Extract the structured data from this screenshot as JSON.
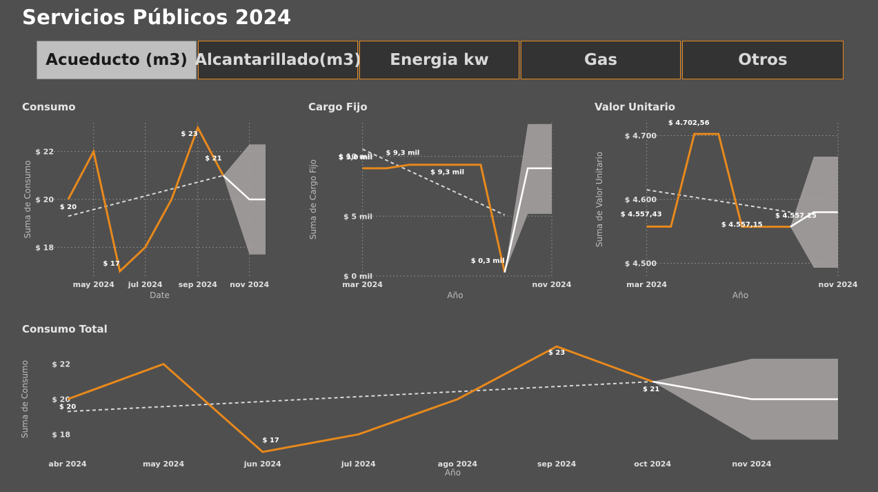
{
  "page": {
    "title": "Servicios Públicos 2024"
  },
  "tabs": [
    {
      "label": "Acueducto (m3)",
      "active": true
    },
    {
      "label": "Alcantarillado(m3)",
      "active": false
    },
    {
      "label": "Energia kw",
      "active": false
    },
    {
      "label": "Gas",
      "active": false
    },
    {
      "label": "Otros",
      "active": false
    }
  ],
  "colors": {
    "line": "#e8891c",
    "forecast": "#ffffff",
    "band": "#a9a3a3",
    "trend": "#d9d9d9",
    "grid": "#8a8a8a",
    "tab_border": "#e8891c"
  },
  "chart_data": [
    {
      "id": "consumo",
      "type": "line",
      "title": "Consumo",
      "xlabel": "Date",
      "ylabel": "Suma de Consumo",
      "x": [
        "2024-04-01",
        "2024-05-01",
        "2024-06-01",
        "2024-07-01",
        "2024-08-01",
        "2024-09-01",
        "2024-10-01"
      ],
      "values": [
        20,
        22,
        17,
        18,
        20,
        23,
        21
      ],
      "xlim": [
        "2024-03-15",
        "2024-11-20"
      ],
      "ylim": [
        16.8,
        23.2
      ],
      "yticks": [
        {
          "v": 18,
          "label": "$ 18"
        },
        {
          "v": 20,
          "label": "$ 20"
        },
        {
          "v": 22,
          "label": "$ 22"
        }
      ],
      "xticks": [
        {
          "x": "2024-05-01",
          "label": "may 2024"
        },
        {
          "x": "2024-07-01",
          "label": "jul 2024"
        },
        {
          "x": "2024-09-01",
          "label": "sep 2024"
        },
        {
          "x": "2024-11-01",
          "label": "nov 2024"
        }
      ],
      "data_labels": [
        {
          "i": 0,
          "label": "$ 20"
        },
        {
          "i": 2,
          "label": "$ 17"
        },
        {
          "i": 5,
          "label": "$ 23"
        },
        {
          "i": 6,
          "label": "$ 21"
        }
      ],
      "trend": {
        "x": [
          "2024-04-01",
          "2024-10-01"
        ],
        "y": [
          19.3,
          21.0
        ]
      },
      "forecast": {
        "x": [
          "2024-10-01",
          "2024-11-01",
          "2024-11-20"
        ],
        "y": [
          21,
          20,
          20
        ],
        "upper": [
          21,
          22.3,
          22.3
        ],
        "lower": [
          21,
          17.7,
          17.7
        ]
      },
      "grid": true
    },
    {
      "id": "cargo",
      "type": "line",
      "title": "Cargo Fijo",
      "xlabel": "Año",
      "ylabel": "Suma de Cargo Fijo",
      "x": [
        "2024-03-01",
        "2024-04-01",
        "2024-05-01",
        "2024-06-01",
        "2024-07-01",
        "2024-08-01",
        "2024-09-01"
      ],
      "values": [
        9.0,
        9.0,
        9.3,
        9.3,
        9.3,
        9.3,
        0.3
      ],
      "xlim": [
        "2024-02-25",
        "2024-11-01"
      ],
      "ylim": [
        0,
        12.8
      ],
      "yticks": [
        {
          "v": 0,
          "label": "$ 0 mil"
        },
        {
          "v": 5,
          "label": "$ 5 mil"
        },
        {
          "v": 10,
          "label": "$ 10 mil"
        }
      ],
      "xticks": [
        {
          "x": "2024-03-01",
          "label": "mar 2024"
        },
        {
          "x": "2024-11-01",
          "label": "nov 2024"
        }
      ],
      "data_labels": [
        {
          "i": 0,
          "label": "$ 9,0 mil"
        },
        {
          "i": 2,
          "label": "$ 9,3 mil"
        },
        {
          "i": 3,
          "label": "$ 9,3 mil"
        },
        {
          "i": 6,
          "label": "$ 0,3 mil"
        }
      ],
      "trend": {
        "x": [
          "2024-03-01",
          "2024-09-01"
        ],
        "y": [
          10.6,
          5.1
        ]
      },
      "forecast": {
        "x": [
          "2024-09-01",
          "2024-10-01",
          "2024-11-01"
        ],
        "y": [
          0.3,
          9.0,
          9.0
        ],
        "upper": [
          0.3,
          12.7,
          12.7
        ],
        "lower": [
          0.3,
          5.2,
          5.2
        ]
      },
      "grid": true
    },
    {
      "id": "valor",
      "type": "line",
      "title": "Valor Unitario",
      "xlabel": "Año",
      "ylabel": "Suma de Valor Unitario",
      "x": [
        "2024-03-01",
        "2024-04-01",
        "2024-05-01",
        "2024-06-01",
        "2024-07-01",
        "2024-08-01",
        "2024-09-01"
      ],
      "values": [
        4557.43,
        4557.43,
        4702.56,
        4702.56,
        4557.15,
        4557.15,
        4557.15
      ],
      "xlim": [
        "2024-02-25",
        "2024-11-01"
      ],
      "ylim": [
        4480,
        4720
      ],
      "yticks": [
        {
          "v": 4500,
          "label": "$ 4.500"
        },
        {
          "v": 4600,
          "label": "$ 4.600"
        },
        {
          "v": 4700,
          "label": "$ 4.700"
        }
      ],
      "xticks": [
        {
          "x": "2024-03-01",
          "label": "mar 2024"
        },
        {
          "x": "2024-11-01",
          "label": "nov 2024"
        }
      ],
      "data_labels": [
        {
          "i": 0,
          "label": "$ 4.557,43"
        },
        {
          "i": 2,
          "label": "$ 4.702,56"
        },
        {
          "i": 4,
          "label": "$ 4.557,15"
        },
        {
          "i": 6,
          "label": "$ 4.557,15"
        }
      ],
      "trend": {
        "x": [
          "2024-03-01",
          "2024-09-01"
        ],
        "y": [
          4615,
          4580
        ]
      },
      "forecast": {
        "x": [
          "2024-09-01",
          "2024-10-01",
          "2024-11-01"
        ],
        "y": [
          4557.15,
          4580,
          4580
        ],
        "upper": [
          4557.15,
          4667,
          4667
        ],
        "lower": [
          4557.15,
          4493,
          4493
        ]
      },
      "grid": true
    },
    {
      "id": "total",
      "type": "line",
      "title": "Consumo Total",
      "xlabel": "Año",
      "ylabel": "Suma de Consumo",
      "x": [
        "2024-04-01",
        "2024-05-01",
        "2024-06-01",
        "2024-07-01",
        "2024-08-01",
        "2024-09-01",
        "2024-10-01"
      ],
      "values": [
        20,
        22,
        17,
        18,
        20,
        23,
        21
      ],
      "xlim": [
        "2024-04-01",
        "2024-11-28"
      ],
      "ylim": [
        16.8,
        23.2
      ],
      "yticks": [
        {
          "v": 18,
          "label": "$ 18"
        },
        {
          "v": 20,
          "label": "$ 20"
        },
        {
          "v": 22,
          "label": "$ 22"
        }
      ],
      "xticks": [
        {
          "x": "2024-04-01",
          "label": "abr 2024"
        },
        {
          "x": "2024-05-01",
          "label": "may 2024"
        },
        {
          "x": "2024-06-01",
          "label": "jun 2024"
        },
        {
          "x": "2024-07-01",
          "label": "jul 2024"
        },
        {
          "x": "2024-08-01",
          "label": "ago 2024"
        },
        {
          "x": "2024-09-01",
          "label": "sep 2024"
        },
        {
          "x": "2024-10-01",
          "label": "oct 2024"
        },
        {
          "x": "2024-11-01",
          "label": "nov 2024"
        }
      ],
      "data_labels": [
        {
          "i": 0,
          "label": "$ 20"
        },
        {
          "i": 2,
          "label": "$ 17"
        },
        {
          "i": 5,
          "label": "$ 23"
        },
        {
          "i": 6,
          "label": "$ 21"
        }
      ],
      "trend": {
        "x": [
          "2024-04-01",
          "2024-10-01"
        ],
        "y": [
          19.3,
          21.0
        ]
      },
      "forecast": {
        "x": [
          "2024-10-01",
          "2024-11-01",
          "2024-11-28"
        ],
        "y": [
          21,
          20,
          20
        ],
        "upper": [
          21,
          22.3,
          22.3
        ],
        "lower": [
          21,
          17.7,
          17.7
        ]
      },
      "grid": false
    }
  ]
}
